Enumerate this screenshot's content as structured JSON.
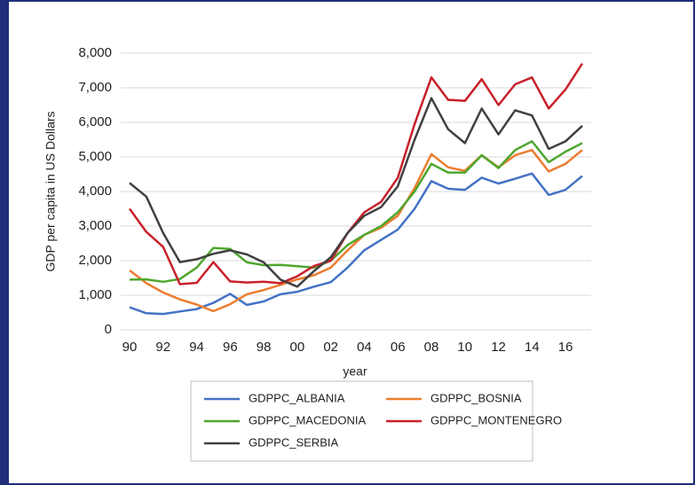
{
  "chart_data": {
    "type": "line",
    "xlabel": "year",
    "ylabel": "GDP per capita in US Dollars",
    "categories": [
      "90",
      null,
      "92",
      null,
      "94",
      null,
      "96",
      null,
      "98",
      null,
      "00",
      null,
      "02",
      null,
      "04",
      null,
      "06",
      null,
      "08",
      null,
      "10",
      null,
      "12",
      null,
      "14",
      null,
      "16",
      null
    ],
    "ylim": [
      0,
      8000
    ],
    "yticks": [
      0,
      {
        "value": 1000,
        "label": "1,000"
      },
      {
        "value": 2000,
        "label": "2,000"
      },
      {
        "value": 3000,
        "label": "3,000"
      },
      {
        "value": 4000,
        "label": "4,000"
      },
      {
        "value": 5000,
        "label": "5,000"
      },
      {
        "value": 6000,
        "label": "6,000"
      },
      {
        "value": 7000,
        "label": "7,000"
      },
      {
        "value": 8000,
        "label": "8,000"
      }
    ],
    "grid": true,
    "series": [
      {
        "name": "GDPPC_ALBANIA",
        "color": "#4472c4",
        "values": [
          650,
          480,
          460,
          530,
          600,
          780,
          1040,
          720,
          820,
          1030,
          1100,
          1250,
          1380,
          1800,
          2300,
          2600,
          2900,
          3500,
          4300,
          4080,
          4050,
          4400,
          4230,
          4370,
          4520,
          3900,
          4050,
          4450
        ]
      },
      {
        "name": "GDPPC_BOSNIA",
        "color": "#ed7d31",
        "values": [
          1720,
          1350,
          1080,
          880,
          730,
          540,
          740,
          1030,
          1150,
          1300,
          1460,
          1580,
          1800,
          2300,
          2750,
          2950,
          3300,
          4100,
          5080,
          4700,
          4600,
          5050,
          4700,
          5050,
          5200,
          4580,
          4800,
          5200
        ]
      },
      {
        "name": "GDPPC_MACEDONIA",
        "color": "#4ea72e",
        "values": [
          1450,
          1460,
          1390,
          1470,
          1800,
          2370,
          2340,
          1950,
          1870,
          1880,
          1840,
          1800,
          2000,
          2450,
          2750,
          3000,
          3400,
          4000,
          4800,
          4550,
          4550,
          5050,
          4680,
          5200,
          5450,
          4850,
          5150,
          5400
        ]
      },
      {
        "name": "GDPPC_MONTENEGRO",
        "color": "#c8202a",
        "values": [
          3500,
          2830,
          2400,
          1320,
          1360,
          1960,
          1400,
          1370,
          1390,
          1350,
          1550,
          1850,
          2000,
          2800,
          3400,
          3700,
          4400,
          5950,
          7300,
          6650,
          6620,
          7250,
          6500,
          7100,
          7300,
          6400,
          6950,
          7700
        ]
      },
      {
        "name": "GDPPC_SERBIA",
        "color": "#404040",
        "values": [
          4250,
          3850,
          2800,
          1960,
          2040,
          2200,
          2300,
          2180,
          1950,
          1450,
          1250,
          1700,
          2100,
          2800,
          3300,
          3550,
          4150,
          5500,
          6700,
          5800,
          5400,
          6400,
          5650,
          6350,
          6200,
          5230,
          5450,
          5900
        ]
      }
    ]
  }
}
